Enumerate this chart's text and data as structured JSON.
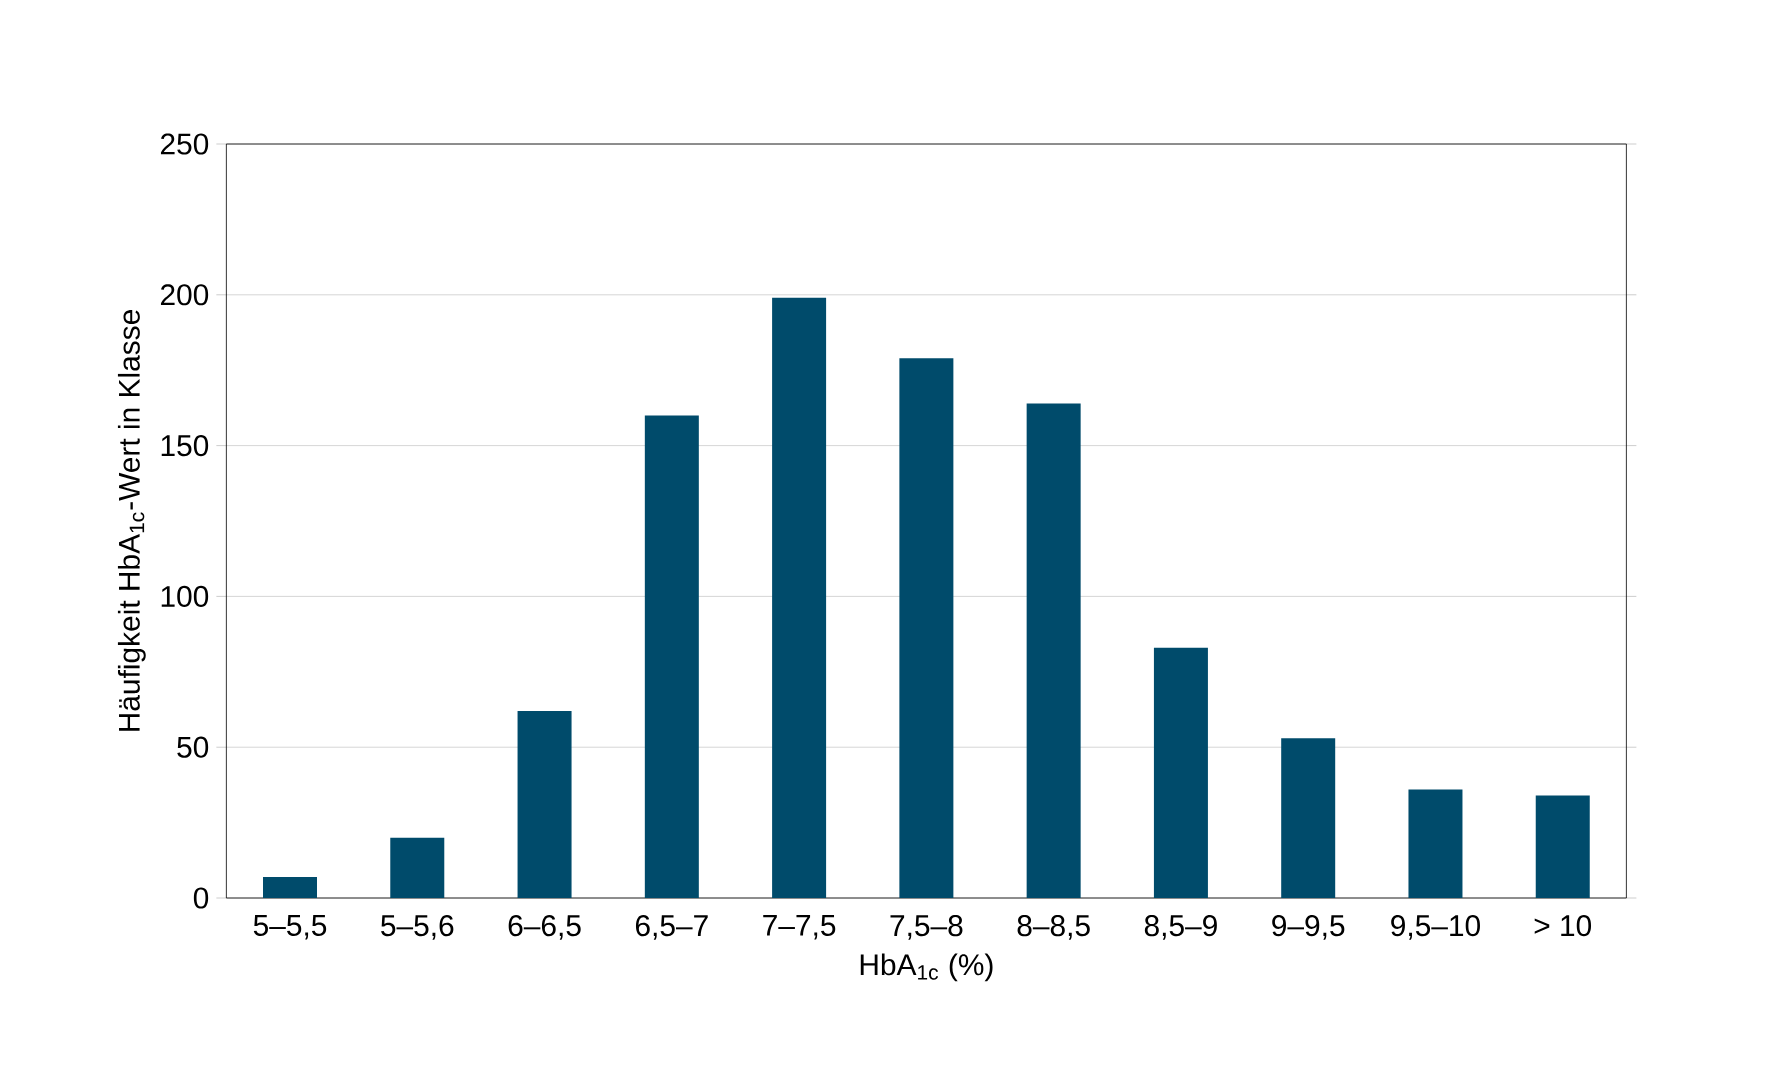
{
  "chart_data": {
    "type": "bar",
    "xlabel": "HbA$_{1c}$ (%)",
    "ylabel": "Häufigkeit HbA$_{1c}$-Wert in Klasse",
    "categories": [
      "5–5,5",
      "5–5,6",
      "6–6,5",
      "6,5–7",
      "7–7,5",
      "7,5–8",
      "8–8,5",
      "8,5–9",
      "9–9,5",
      "9,5–10",
      "> 10"
    ],
    "values": [
      7,
      20,
      62,
      160,
      199,
      179,
      164,
      83,
      53,
      36,
      34
    ],
    "color": "#004b6b",
    "ylim": [
      0,
      250
    ],
    "yticks": [
      0,
      50,
      100,
      150,
      200,
      250
    ],
    "grid": "y"
  }
}
